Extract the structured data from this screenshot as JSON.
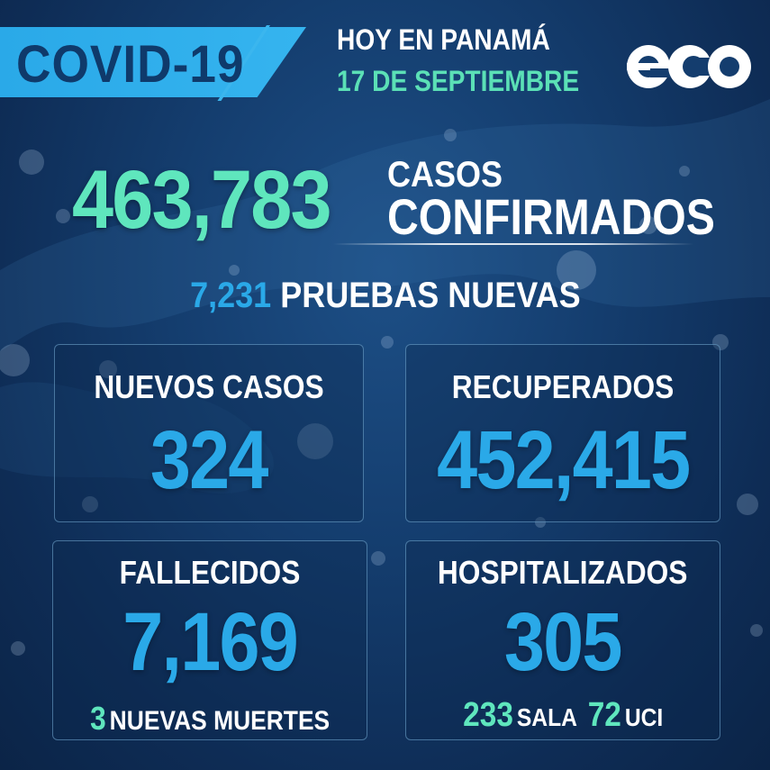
{
  "header": {
    "title": "COVID-19",
    "subtitle": "HOY EN PANAMÁ",
    "date": "17 DE SEPTIEMBRE",
    "logo": "eco-logo",
    "colors": {
      "banner": "#2aa9e8",
      "title_text": "#0f3a6b",
      "accent_green": "#5be0b6"
    }
  },
  "total": {
    "number": "463,783",
    "label_top": "CASOS",
    "label_bottom": "CONFIRMADOS"
  },
  "tests": {
    "number": "7,231",
    "label": "PRUEBAS NUEVAS"
  },
  "cards": {
    "new_cases": {
      "title": "NUEVOS CASOS",
      "value": "324"
    },
    "recovered": {
      "title": "RECUPERADOS",
      "value": "452,415"
    },
    "deaths": {
      "title": "FALLECIDOS",
      "value": "7,169",
      "sub_number": "3",
      "sub_label": "NUEVAS MUERTES"
    },
    "hospitalized": {
      "title": "HOSPITALIZADOS",
      "value": "305",
      "ward_number": "233",
      "ward_label": "SALA",
      "icu_number": "72",
      "icu_label": "UCI"
    }
  },
  "colors": {
    "number_blue": "#2aa9e8",
    "number_green": "#5fe6bd",
    "background": "#143d6e"
  }
}
